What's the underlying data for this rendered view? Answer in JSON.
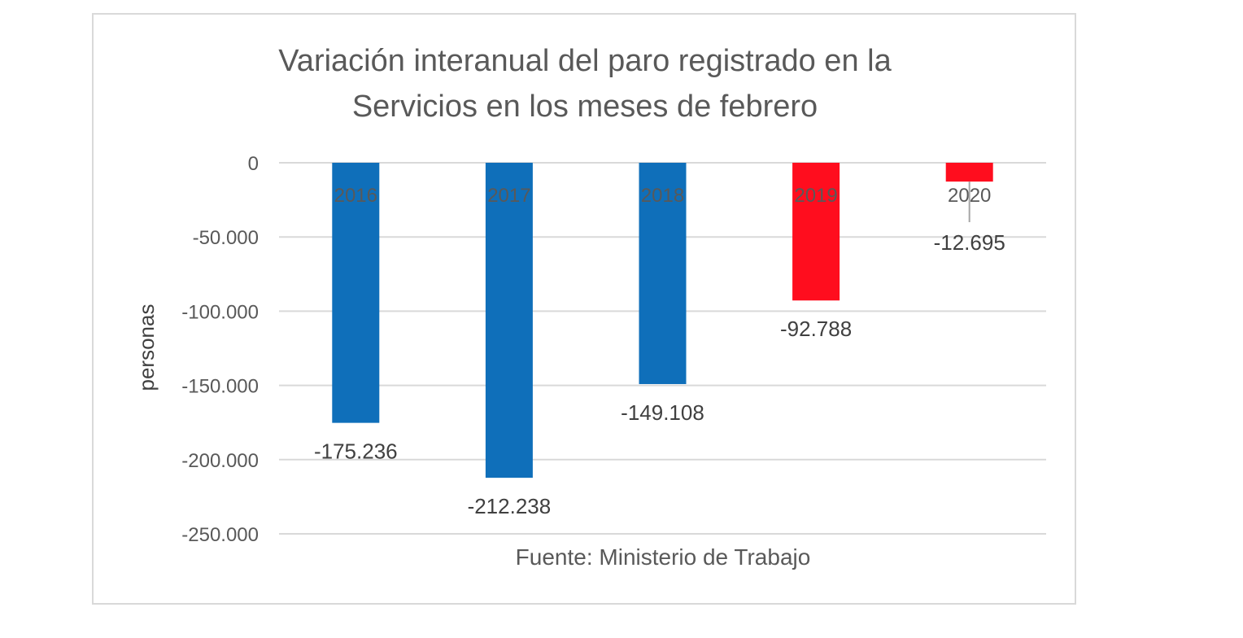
{
  "chart_data": {
    "type": "bar",
    "title_lines": [
      "Variación interanual del paro registrado en la",
      "Servicios en los meses de febrero"
    ],
    "categories": [
      "2016",
      "2017",
      "2018",
      "2019",
      "2020"
    ],
    "values": [
      -175236,
      -212238,
      -149108,
      -92788,
      -12695
    ],
    "value_labels": [
      "-175.236",
      "-212.238",
      "-149.108",
      "-92.788",
      "-12.695"
    ],
    "colors": [
      "#0f6fba",
      "#0f6fba",
      "#0f6fba",
      "#ff0d1e",
      "#ff0d1e"
    ],
    "ylabel": "personas",
    "xlabel": "Fuente: Ministerio de Trabajo",
    "ylim": [
      -250000,
      0
    ],
    "yticks": [
      0,
      -50000,
      -100000,
      -150000,
      -200000,
      -250000
    ],
    "ytick_labels": [
      "0",
      "-50.000",
      "-100.000",
      "-150.000",
      "-200.000",
      "-250.000"
    ],
    "grid": true,
    "legend": "none"
  }
}
